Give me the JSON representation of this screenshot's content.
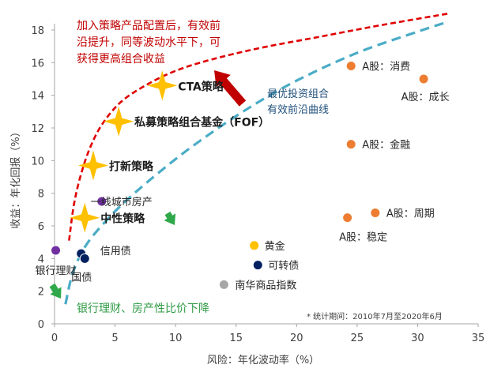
{
  "chart_data": {
    "type": "scatter",
    "xlabel": "风险：年化波动率（%）",
    "ylabel": "收益：年化回报（%）",
    "xlim": [
      0,
      35
    ],
    "ylim": [
      0,
      18
    ],
    "x_ticks": [
      0,
      5,
      10,
      15,
      20,
      25,
      30,
      35
    ],
    "y_ticks": [
      0,
      2,
      4,
      6,
      8,
      10,
      12,
      14,
      16,
      18
    ],
    "points": [
      {
        "label": "A股：消费",
        "x": 24.5,
        "y": 15.8,
        "color": "#ed7d31"
      },
      {
        "label": "A股：成长",
        "x": 30.5,
        "y": 15.0,
        "color": "#ed7d31"
      },
      {
        "label": "A股：金融",
        "x": 24.5,
        "y": 11.0,
        "color": "#ed7d31"
      },
      {
        "label": "A股：周期",
        "x": 26.5,
        "y": 6.8,
        "color": "#ed7d31"
      },
      {
        "label": "A股：稳定",
        "x": 24.2,
        "y": 6.5,
        "color": "#ed7d31"
      },
      {
        "label": "一线城市房产",
        "x": 3.9,
        "y": 7.5,
        "color": "#7030a0"
      },
      {
        "label": "银行理财",
        "x": 0.1,
        "y": 4.5,
        "color": "#7030a0"
      },
      {
        "label": "信用债",
        "x": 2.2,
        "y": 4.3,
        "color": "#002060"
      },
      {
        "label": "国债",
        "x": 2.5,
        "y": 4.0,
        "color": "#002060"
      },
      {
        "label": "黄金",
        "x": 16.5,
        "y": 4.8,
        "color": "#ffc000"
      },
      {
        "label": "可转债",
        "x": 16.8,
        "y": 3.6,
        "color": "#002060"
      },
      {
        "label": "南华商品指数",
        "x": 14.0,
        "y": 2.4,
        "color": "#a6a6a6"
      }
    ],
    "strategies": [
      {
        "label": "CTA策略",
        "x": 8.9,
        "y": 14.6,
        "color": "#ffc000"
      },
      {
        "label": "私募策略组合基金（FOF）",
        "x": 5.3,
        "y": 12.4,
        "color": "#ffc000"
      },
      {
        "label": "打新策略",
        "x": 3.2,
        "y": 9.7,
        "color": "#ffc000"
      },
      {
        "label": "中性策略",
        "x": 2.5,
        "y": 6.5,
        "color": "#ffc000"
      }
    ],
    "frontier_optimized": {
      "name": "加入策略产品配置后，有效前沿提升，同等波动水平下，可获得更高组合收益",
      "x": [
        1.2,
        1.6,
        2.2,
        3.0,
        4.0,
        5.5,
        7.5,
        10.0,
        13.0,
        17.0,
        22.0,
        27.0,
        32.5
      ],
      "y": [
        5.1,
        7.3,
        9.2,
        10.9,
        12.3,
        13.6,
        14.6,
        15.5,
        16.2,
        16.9,
        17.6,
        18.3,
        19.0
      ],
      "color": "#e00000"
    },
    "frontier_traditional": {
      "name": "最优投资组合有效前沿曲线",
      "x": [
        0.9,
        1.5,
        2.5,
        4.0,
        6.0,
        9.0,
        12.0,
        16.0,
        20.0,
        25.0,
        30.0,
        32.5
      ],
      "y": [
        1.2,
        3.1,
        4.7,
        6.1,
        7.6,
        9.5,
        11.2,
        13.2,
        14.9,
        16.6,
        17.9,
        18.5
      ],
      "color": "#4bacc6"
    },
    "annotations": {
      "red_text": [
        "加入策略产品配置后，有效前",
        "沿提升，同等波动水平下，可",
        "获得更高组合收益"
      ],
      "blue_text": [
        "最优投资组合",
        "有效前沿曲线"
      ],
      "green_text": "银行理财、房产性比价下降",
      "note": "* 统计期间：2010年7月至2020年6月"
    }
  }
}
